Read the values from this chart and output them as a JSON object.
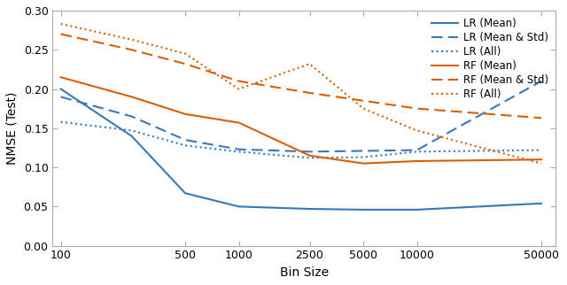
{
  "bin_sizes": [
    100,
    250,
    500,
    1000,
    2500,
    5000,
    10000,
    50000
  ],
  "LR_Mean": [
    0.2,
    0.14,
    0.067,
    0.05,
    0.047,
    0.046,
    0.046,
    0.054
  ],
  "LR_MeanStd": [
    0.19,
    0.165,
    0.135,
    0.123,
    0.12,
    0.121,
    0.122,
    0.21
  ],
  "LR_All": [
    0.158,
    0.147,
    0.128,
    0.12,
    0.112,
    0.113,
    0.12,
    0.122
  ],
  "RF_Mean": [
    0.215,
    0.19,
    0.168,
    0.157,
    0.115,
    0.105,
    0.108,
    0.11
  ],
  "RF_MeanStd": [
    0.27,
    0.25,
    0.232,
    0.21,
    0.195,
    0.185,
    0.175,
    0.163
  ],
  "RF_All": [
    0.283,
    0.263,
    0.245,
    0.2,
    0.232,
    0.175,
    0.147,
    0.105
  ],
  "color_LR": "#3778b8",
  "color_RF": "#d95f02",
  "ylabel": "NMSE (Test)",
  "xlabel": "Bin Size",
  "ylim": [
    0,
    0.3
  ],
  "yticks": [
    0,
    0.05,
    0.1,
    0.15,
    0.2,
    0.25,
    0.3
  ],
  "xtick_vals": [
    100,
    500,
    1000,
    2500,
    5000,
    10000,
    50000
  ],
  "xtick_labels": [
    "100",
    "500",
    "1000",
    "2500",
    "5000",
    "10000",
    "50000"
  ],
  "legend_labels": [
    "LR (Mean)",
    "LR (Mean & Std)",
    "LR (All)",
    "RF (Mean)",
    "RF (Mean & Std)",
    "RF (All)"
  ]
}
